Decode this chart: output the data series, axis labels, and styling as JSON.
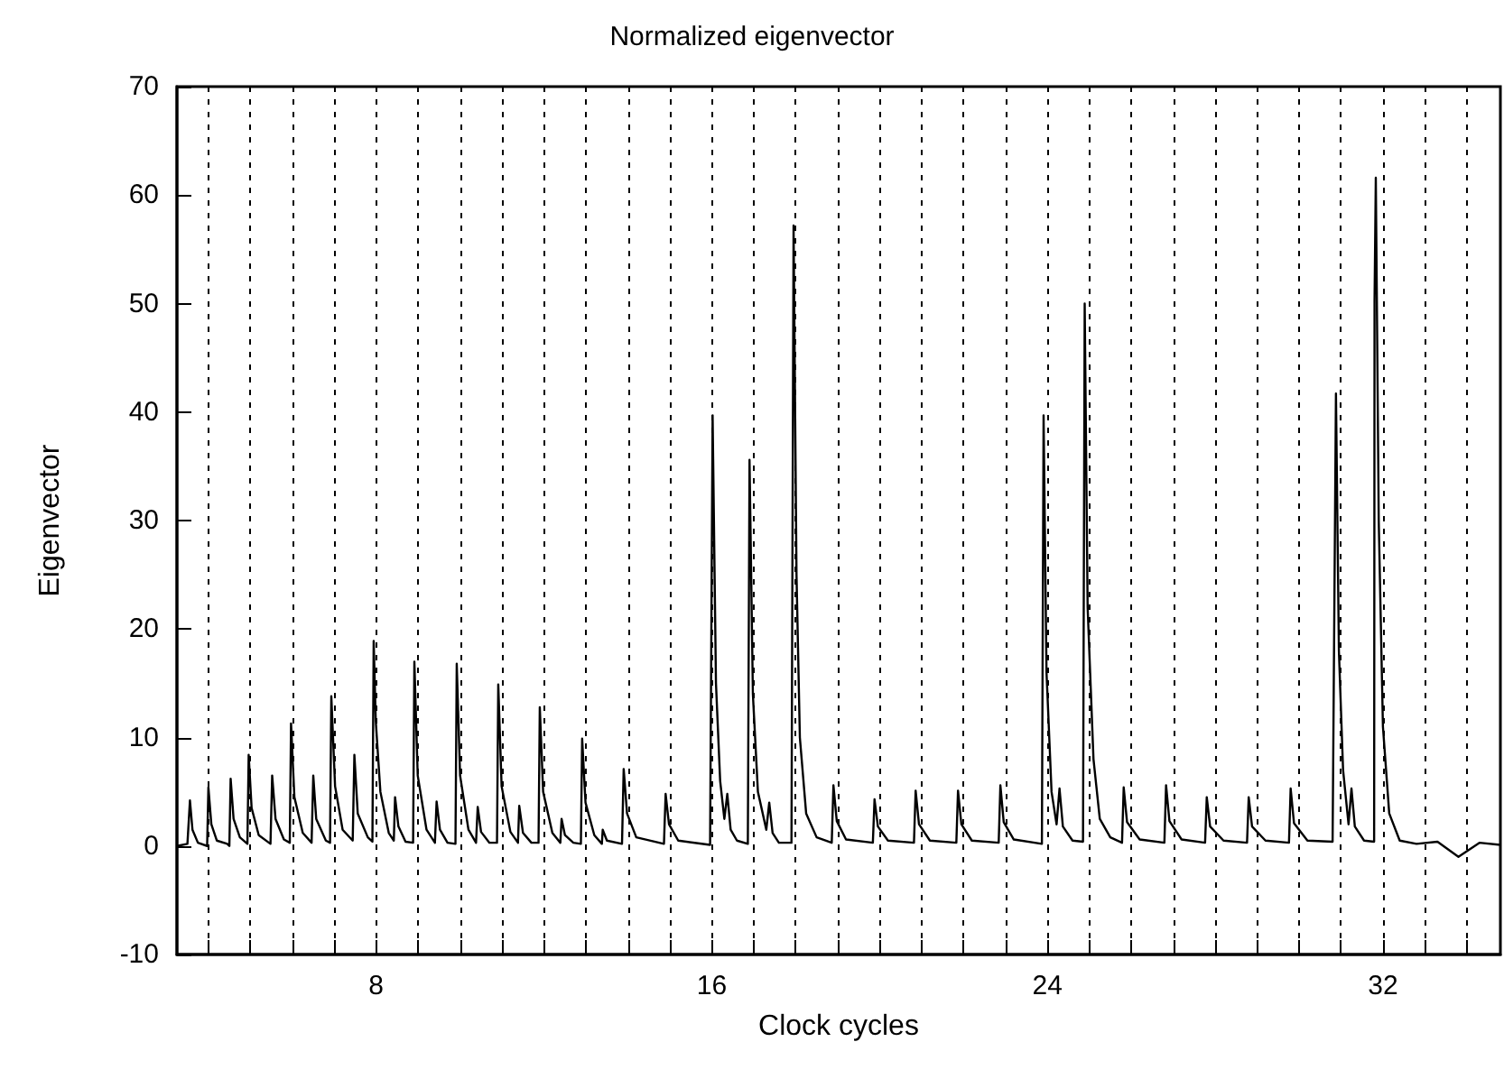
{
  "chart_data": {
    "type": "line",
    "title": "Normalized eigenvector",
    "xlabel": "Clock cycles",
    "ylabel": "Eigenvector",
    "xlim": [
      3.25,
      34.8
    ],
    "xticks": [
      {
        "value": 4,
        "label": null
      },
      {
        "value": 5,
        "label": null
      },
      {
        "value": 6,
        "label": null
      },
      {
        "value": 7,
        "label": null
      },
      8,
      {
        "value": 9,
        "label": null
      },
      {
        "value": 10,
        "label": null
      },
      {
        "value": 11,
        "label": null
      },
      {
        "value": 12,
        "label": null
      },
      {
        "value": 13,
        "label": null
      },
      {
        "value": 14,
        "label": null
      },
      {
        "value": 15,
        "label": null
      },
      16,
      {
        "value": 17,
        "label": null
      },
      {
        "value": 18,
        "label": null
      },
      {
        "value": 19,
        "label": null
      },
      {
        "value": 20,
        "label": null
      },
      {
        "value": 21,
        "label": null
      },
      {
        "value": 22,
        "label": null
      },
      {
        "value": 23,
        "label": null
      },
      24,
      {
        "value": 25,
        "label": null
      },
      {
        "value": 26,
        "label": null
      },
      {
        "value": 27,
        "label": null
      },
      {
        "value": 28,
        "label": null
      },
      {
        "value": 29,
        "label": null
      },
      {
        "value": 30,
        "label": null
      },
      {
        "value": 31,
        "label": null
      },
      32,
      {
        "value": 33,
        "label": null
      },
      {
        "value": 34,
        "label": null
      }
    ],
    "ylim": [
      -10,
      70
    ],
    "yticks": [
      -10,
      0,
      10,
      20,
      30,
      40,
      50,
      60,
      70
    ],
    "grid": "x",
    "marker": "none",
    "line_style": "solid",
    "series": [
      {
        "color": "#000000",
        "x": [
          3.25,
          3.5,
          3.56,
          3.62,
          3.75,
          3.97,
          4.0,
          4.07,
          4.2,
          4.45,
          4.5,
          4.53,
          4.6,
          4.75,
          4.93,
          4.96,
          5.03,
          5.2,
          5.48,
          5.52,
          5.6,
          5.8,
          5.94,
          5.97,
          6.05,
          6.25,
          6.46,
          6.5,
          6.57,
          6.8,
          6.9,
          6.93,
          7.02,
          7.2,
          7.44,
          7.48,
          7.56,
          7.8,
          7.91,
          7.94,
          7.99,
          8.1,
          8.3,
          8.42,
          8.45,
          8.53,
          8.7,
          8.88,
          8.91,
          8.99,
          9.2,
          9.4,
          9.44,
          9.52,
          9.7,
          9.89,
          9.92,
          10.0,
          10.2,
          10.38,
          10.42,
          10.5,
          10.7,
          10.88,
          10.91,
          10.99,
          11.2,
          11.38,
          11.41,
          11.5,
          11.7,
          11.87,
          11.9,
          11.98,
          12.2,
          12.39,
          12.42,
          12.5,
          12.7,
          12.88,
          12.91,
          12.99,
          13.2,
          13.38,
          13.4,
          13.5,
          13.86,
          13.9,
          13.98,
          14.2,
          14.86,
          14.9,
          14.98,
          15.2,
          15.96,
          16.02,
          16.1,
          16.2,
          16.3,
          16.37,
          16.45,
          16.6,
          16.86,
          16.9,
          16.98,
          17.1,
          17.3,
          17.37,
          17.45,
          17.6,
          17.9,
          17.95,
          18.02,
          18.1,
          18.25,
          18.5,
          18.86,
          18.9,
          18.98,
          19.2,
          19.84,
          19.88,
          19.96,
          20.2,
          20.82,
          20.86,
          20.94,
          21.2,
          21.83,
          21.87,
          21.95,
          22.2,
          22.84,
          22.88,
          22.96,
          23.2,
          23.87,
          23.91,
          23.98,
          24.1,
          24.22,
          24.29,
          24.37,
          24.6,
          24.85,
          24.89,
          24.96,
          25.1,
          25.25,
          25.5,
          25.78,
          25.82,
          25.9,
          26.2,
          26.79,
          26.83,
          26.91,
          27.2,
          27.76,
          27.8,
          27.88,
          28.2,
          28.76,
          28.8,
          28.88,
          29.2,
          29.76,
          29.8,
          29.88,
          30.2,
          30.8,
          30.88,
          30.95,
          31.05,
          31.18,
          31.25,
          31.33,
          31.55,
          31.79,
          31.8,
          31.83,
          31.9,
          32.0,
          32.15,
          32.4,
          32.8,
          33.3,
          33.8,
          34.3,
          34.8
        ],
        "values": [
          0,
          0.2,
          4.2,
          1.5,
          0.3,
          0,
          5.4,
          2,
          0.5,
          0.2,
          0,
          6.2,
          2.5,
          0.8,
          0.2,
          8.4,
          3.5,
          1,
          0.2,
          6.5,
          2.5,
          0.6,
          0.3,
          11.3,
          4.5,
          1.2,
          0.3,
          6.5,
          2.5,
          0.5,
          0.3,
          13.8,
          5.5,
          1.5,
          0.5,
          8.4,
          3,
          0.8,
          0.4,
          18.9,
          11.5,
          5,
          1.2,
          0.5,
          4.5,
          1.8,
          0.4,
          0.3,
          17,
          6.5,
          1.5,
          0.3,
          4.1,
          1.5,
          0.3,
          0.2,
          16.8,
          6.5,
          1.5,
          0.3,
          3.6,
          1.3,
          0.3,
          0.3,
          14.9,
          5.5,
          1.3,
          0.3,
          3.7,
          1.2,
          0.3,
          0.3,
          12.8,
          5,
          1.2,
          0.3,
          2.5,
          1,
          0.3,
          0.2,
          9.9,
          4,
          1,
          0.2,
          1.5,
          0.5,
          0.2,
          7.1,
          3,
          0.8,
          0.2,
          4.8,
          2,
          0.5,
          0.1,
          39.7,
          15,
          6,
          2.5,
          4.8,
          1.5,
          0.5,
          0.2,
          35.6,
          14,
          5,
          1.5,
          4,
          1.2,
          0.3,
          0.3,
          57.2,
          25,
          10,
          3,
          0.8,
          0.3,
          5.6,
          2.3,
          0.6,
          0.3,
          4.3,
          1.8,
          0.5,
          0.3,
          5.1,
          2,
          0.5,
          0.3,
          5.1,
          2,
          0.5,
          0.3,
          5.6,
          2.2,
          0.6,
          0.2,
          39.7,
          16,
          5,
          2,
          5.3,
          1.8,
          0.5,
          0.4,
          50,
          22,
          8,
          2.5,
          0.8,
          0.3,
          5.4,
          2.2,
          0.6,
          0.3,
          5.6,
          2.3,
          0.6,
          0.3,
          4.5,
          1.8,
          0.5,
          0.3,
          4.5,
          1.8,
          0.5,
          0.3,
          5.3,
          2.1,
          0.5,
          0.4,
          41.7,
          18,
          7,
          2,
          5.3,
          1.8,
          0.5,
          0.4,
          50.3,
          61.6,
          30,
          11,
          3,
          0.5,
          0.2,
          0.4,
          -1,
          0.3,
          0.1
        ]
      }
    ]
  }
}
